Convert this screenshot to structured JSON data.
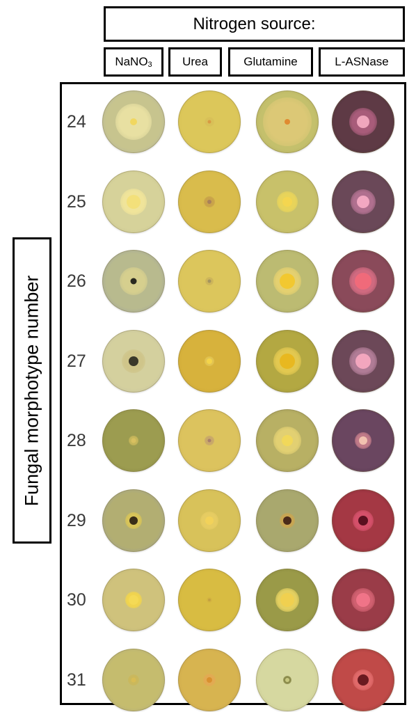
{
  "header": {
    "title": "Nitrogen source:",
    "columns": [
      {
        "label": "NaNO",
        "sub": "3"
      },
      {
        "label": "Urea",
        "sub": ""
      },
      {
        "label": "Glutamine",
        "sub": ""
      },
      {
        "label": "L-ASNase",
        "sub": ""
      }
    ]
  },
  "y_axis_label": "Fungal morphotype number",
  "rows": [
    {
      "label": "24",
      "plates": [
        {
          "bg": "#c7c48e",
          "edge": "#a7aaa6",
          "colony": "#e8e0a2",
          "colonySize": 52,
          "center": "#f1d760",
          "centerSize": 10
        },
        {
          "bg": "#dcc75a",
          "edge": "#cdb64c",
          "colony": "#d8c058",
          "colonySize": 14,
          "center": "#d89a42",
          "centerSize": 5
        },
        {
          "bg": "#c4c06c",
          "edge": "#a9a55a",
          "colony": "#dcc876",
          "colonySize": 70,
          "center": "#e08a30",
          "centerSize": 8
        },
        {
          "bg": "#5e3a45",
          "edge": "#3f2a33",
          "colony": "#a85c7a",
          "colonySize": 40,
          "center": "#f0a6bd",
          "centerSize": 18
        }
      ]
    },
    {
      "label": "25",
      "plates": [
        {
          "bg": "#d6d29a",
          "edge": "#bdb98a",
          "colony": "#f0e49a",
          "colonySize": 38,
          "center": "#f3e07a",
          "centerSize": 20
        },
        {
          "bg": "#d9bc4c",
          "edge": "#c4a840",
          "colony": "#c9a34a",
          "colonySize": 16,
          "center": "#a8805a",
          "centerSize": 6
        },
        {
          "bg": "#c8c16a",
          "edge": "#aea65a",
          "colony": "#e8d45a",
          "colonySize": 30,
          "center": "#f4d650",
          "centerSize": 14
        },
        {
          "bg": "#6a4858",
          "edge": "#4a3340",
          "colony": "#b0708f",
          "colonySize": 36,
          "center": "#f2a8c2",
          "centerSize": 18
        }
      ]
    },
    {
      "label": "26",
      "plates": [
        {
          "bg": "#b8ba8e",
          "edge": "#8e93a8",
          "colony": "#d6cf8e",
          "colonySize": 40,
          "center": "#2a2a20",
          "centerSize": 9
        },
        {
          "bg": "#dcc65c",
          "edge": "#cdb655",
          "colony": "#cdb55a",
          "colonySize": 12,
          "center": "#a4945e",
          "centerSize": 5
        },
        {
          "bg": "#bcbb72",
          "edge": "#9a9a5a",
          "colony": "#e4d070",
          "colonySize": 40,
          "center": "#f2c830",
          "centerSize": 22
        },
        {
          "bg": "#8a4a5a",
          "edge": "#5c3040",
          "colony": "#d06a80",
          "colonySize": 40,
          "center": "#f06a7a",
          "centerSize": 24
        }
      ]
    },
    {
      "label": "27",
      "plates": [
        {
          "bg": "#d4d09e",
          "edge": "#b9b6a2",
          "colony": "#cfc58a",
          "colonySize": 34,
          "center": "#3a382a",
          "centerSize": 14
        },
        {
          "bg": "#d7b23c",
          "edge": "#c39c30",
          "colony": "#e2c452",
          "colonySize": 14,
          "center": "#f4d44a",
          "centerSize": 8
        },
        {
          "bg": "#b3a842",
          "edge": "#8f8836",
          "colony": "#e2c850",
          "colonySize": 40,
          "center": "#e8b820",
          "centerSize": 22
        },
        {
          "bg": "#6c4858",
          "edge": "#4a3342",
          "colony": "#b07c96",
          "colonySize": 40,
          "center": "#f2a6be",
          "centerSize": 22
        }
      ]
    },
    {
      "label": "28",
      "plates": [
        {
          "bg": "#9c9c50",
          "edge": "#7f7f40",
          "colony": "#c6b65a",
          "colonySize": 14,
          "center": "#d8c060",
          "centerSize": 7
        },
        {
          "bg": "#dcc35e",
          "edge": "#c9ad50",
          "colony": "#c9a86a",
          "colonySize": 14,
          "center": "#a87e6a",
          "centerSize": 5
        },
        {
          "bg": "#b8b064",
          "edge": "#8a8650",
          "colony": "#e2d072",
          "colonySize": 40,
          "center": "#f1d85a",
          "centerSize": 16
        },
        {
          "bg": "#6a4660",
          "edge": "#4c3045",
          "colony": "#c07a88",
          "colonySize": 24,
          "center": "#f2c2b0",
          "centerSize": 12
        }
      ]
    },
    {
      "label": "29",
      "plates": [
        {
          "bg": "#b2ae72",
          "edge": "#8e94a6",
          "colony": "#d8c458",
          "colonySize": 24,
          "center": "#3a2e18",
          "centerSize": 12
        },
        {
          "bg": "#d8c25a",
          "edge": "#c6ac4c",
          "colony": "#e6cc62",
          "colonySize": 26,
          "center": "#f2d25a",
          "centerSize": 12
        },
        {
          "bg": "#a9a86e",
          "edge": "#8a8a60",
          "colony": "#c8a552",
          "colonySize": 22,
          "center": "#4a2a1a",
          "centerSize": 12
        },
        {
          "bg": "#a43844",
          "edge": "#6c2030",
          "colony": "#d4506a",
          "colonySize": 30,
          "center": "#5a1020",
          "centerSize": 14
        }
      ]
    },
    {
      "label": "30",
      "plates": [
        {
          "bg": "#cfc27c",
          "edge": "#b4aa74",
          "colony": "#f0d44e",
          "colonySize": 24,
          "center": "#f4da56",
          "centerSize": 14
        },
        {
          "bg": "#d8bc42",
          "edge": "#c2a438",
          "colony": "#d4b440",
          "colonySize": 8,
          "center": "#c4a040",
          "centerSize": 4
        },
        {
          "bg": "#9a9a48",
          "edge": "#7a7a38",
          "colony": "#e4d060",
          "colonySize": 34,
          "center": "#f0d050",
          "centerSize": 20
        },
        {
          "bg": "#9a3c48",
          "edge": "#5c2532",
          "colony": "#d06070",
          "colonySize": 34,
          "center": "#f07488",
          "centerSize": 20
        }
      ]
    },
    {
      "label": "31",
      "plates": [
        {
          "bg": "#c5bc6e",
          "edge": "#a6a286",
          "colony": "#cab85c",
          "colonySize": 16,
          "center": "#d8bc54",
          "centerSize": 7
        },
        {
          "bg": "#d7b450",
          "edge": "#c09a48",
          "colony": "#e2aa52",
          "colonySize": 18,
          "center": "#d9902e",
          "centerSize": 8
        },
        {
          "bg": "#d6d8a0",
          "edge": "#bcbc8c",
          "colony": "#8a8a4a",
          "colonySize": 12,
          "center": "#c8c880",
          "centerSize": 6
        },
        {
          "bg": "#c04a48",
          "edge": "#7a2a30",
          "colony": "#e06a6a",
          "colonySize": 30,
          "center": "#6a1a20",
          "centerSize": 16
        }
      ]
    }
  ]
}
